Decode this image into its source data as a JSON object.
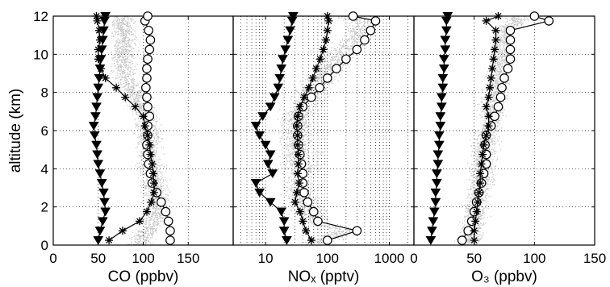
{
  "chart_data": [
    {
      "type": "line",
      "panel": "co",
      "xlabel": "CO (ppbv)",
      "ylabel": "altitude (km)",
      "xlim": [
        0,
        200
      ],
      "ylim": [
        0,
        12
      ],
      "xscale": "linear",
      "xticks": [
        0,
        50,
        100,
        150
      ],
      "yticks": [
        0,
        2,
        4,
        6,
        8,
        10,
        12
      ],
      "background_scatter": true,
      "series": [
        {
          "marker": "circle",
          "x": [
            130,
            130,
            128,
            125,
            120,
            115,
            110,
            108,
            106,
            105,
            104,
            105,
            105,
            107,
            105,
            104,
            103,
            104,
            104,
            105,
            107,
            108,
            106,
            102,
            105
          ],
          "y": [
            0.25,
            0.75,
            1.25,
            1.75,
            2.25,
            2.75,
            3.25,
            3.75,
            4.25,
            4.75,
            5.25,
            5.75,
            6.25,
            6.75,
            7.25,
            7.75,
            8.25,
            8.75,
            9.25,
            9.75,
            10.25,
            10.75,
            11.25,
            11.75,
            12
          ]
        },
        {
          "marker": "star",
          "x": [
            62,
            77,
            96,
            104,
            109,
            112,
            112,
            111,
            110,
            108,
            107,
            105,
            102,
            100,
            91,
            80,
            70,
            58,
            53,
            50,
            50,
            52,
            51,
            49,
            48
          ],
          "y": [
            0.25,
            0.75,
            1.25,
            1.75,
            2.25,
            2.75,
            3.25,
            3.75,
            4.25,
            4.75,
            5.25,
            5.75,
            6.25,
            6.75,
            7.25,
            7.75,
            8.25,
            8.75,
            9.25,
            9.75,
            10.25,
            10.75,
            11.25,
            11.75,
            12
          ]
        },
        {
          "marker": "triangle",
          "x": [
            50,
            52,
            55,
            58,
            57,
            56,
            54,
            52,
            50,
            49,
            48,
            46,
            45,
            47,
            48,
            49,
            50,
            51,
            52,
            53,
            54,
            55,
            56,
            57,
            58
          ],
          "y": [
            0.25,
            0.75,
            1.25,
            1.75,
            2.25,
            2.75,
            3.25,
            3.75,
            4.25,
            4.75,
            5.25,
            5.75,
            6.25,
            6.75,
            7.25,
            7.75,
            8.25,
            8.75,
            9.25,
            9.75,
            10.25,
            10.75,
            11.25,
            11.75,
            12
          ]
        }
      ]
    },
    {
      "type": "line",
      "panel": "nox",
      "xlabel": "NOₓ (pptv)",
      "xlim": [
        3,
        2500
      ],
      "ylim": [
        0,
        12
      ],
      "xscale": "log",
      "xticks": [
        10,
        100,
        1000
      ],
      "yticks": [
        0,
        2,
        4,
        6,
        8,
        10,
        12
      ],
      "background_scatter": true,
      "series": [
        {
          "marker": "circle",
          "x": [
            100,
            300,
            70,
            60,
            48,
            42,
            40,
            40,
            38,
            36,
            34,
            33,
            33,
            34,
            40,
            55,
            75,
            100,
            140,
            200,
            300,
            400,
            500,
            600,
            260
          ],
          "y": [
            0.25,
            0.75,
            1.25,
            1.75,
            2.25,
            2.75,
            3.25,
            3.75,
            4.25,
            4.75,
            5.25,
            5.75,
            6.25,
            6.75,
            7.25,
            7.75,
            8.25,
            8.75,
            9.25,
            9.75,
            10.25,
            10.75,
            11.25,
            11.75,
            12
          ]
        },
        {
          "marker": "star",
          "x": [
            55,
            45,
            40,
            36,
            30,
            32,
            35,
            33,
            34,
            34,
            33,
            33,
            32,
            33,
            36,
            42,
            50,
            58,
            66,
            76,
            86,
            95,
            100,
            105,
            100
          ],
          "y": [
            0.25,
            0.75,
            1.25,
            1.75,
            2.25,
            2.75,
            3.25,
            3.75,
            4.25,
            4.75,
            5.25,
            5.75,
            6.25,
            6.75,
            7.25,
            7.75,
            8.25,
            8.75,
            9.25,
            9.75,
            10.25,
            10.75,
            11.25,
            11.75,
            12
          ]
        },
        {
          "marker": "triangle",
          "x": [
            22,
            20,
            20,
            18,
            12,
            8,
            7,
            13,
            11,
            12,
            10,
            8,
            7,
            9,
            12,
            14,
            16,
            17,
            18,
            19,
            21,
            23,
            25,
            27,
            28
          ],
          "y": [
            0.25,
            0.75,
            1.25,
            1.75,
            2.25,
            2.75,
            3.25,
            3.75,
            4.25,
            4.75,
            5.25,
            5.75,
            6.25,
            6.75,
            7.25,
            7.75,
            8.25,
            8.75,
            9.25,
            9.75,
            10.25,
            10.75,
            11.25,
            11.75,
            12
          ]
        }
      ]
    },
    {
      "type": "line",
      "panel": "o3",
      "xlabel": "O₃ (ppbv)",
      "xlim": [
        0,
        150
      ],
      "ylim": [
        0,
        12
      ],
      "xscale": "linear",
      "xticks": [
        0,
        50,
        100,
        150
      ],
      "yticks": [
        0,
        2,
        4,
        6,
        8,
        10,
        12
      ],
      "background_scatter": true,
      "series": [
        {
          "marker": "circle",
          "x": [
            40,
            45,
            48,
            50,
            52,
            54,
            56,
            58,
            60,
            60,
            59,
            60,
            64,
            67,
            70,
            72,
            73,
            75,
            78,
            80,
            80,
            80,
            80,
            112,
            100
          ],
          "y": [
            0.25,
            0.75,
            1.25,
            1.75,
            2.25,
            2.75,
            3.25,
            3.75,
            4.25,
            4.75,
            5.25,
            5.75,
            6.25,
            6.75,
            7.25,
            7.75,
            8.25,
            8.75,
            9.25,
            9.75,
            10.25,
            10.75,
            11.25,
            11.75,
            12
          ]
        },
        {
          "marker": "star",
          "x": [
            50,
            50,
            51,
            52,
            53,
            54,
            55,
            55,
            56,
            57,
            58,
            60,
            62,
            62,
            60,
            62,
            63,
            64,
            65,
            66,
            67,
            68,
            68,
            60,
            70
          ],
          "y": [
            0.25,
            0.75,
            1.25,
            1.75,
            2.25,
            2.75,
            3.25,
            3.75,
            4.25,
            4.75,
            5.25,
            5.75,
            6.25,
            6.75,
            7.25,
            7.75,
            8.25,
            8.75,
            9.25,
            9.75,
            10.25,
            10.75,
            11.25,
            11.75,
            12
          ]
        },
        {
          "marker": "triangle",
          "x": [
            14,
            15,
            16,
            17,
            18,
            18,
            19,
            19,
            20,
            20,
            21,
            21,
            22,
            22,
            23,
            23,
            24,
            24,
            25,
            25,
            26,
            26,
            27,
            27,
            28
          ],
          "y": [
            0.25,
            0.75,
            1.25,
            1.75,
            2.25,
            2.75,
            3.25,
            3.75,
            4.25,
            4.75,
            5.25,
            5.75,
            6.25,
            6.75,
            7.25,
            7.75,
            8.25,
            8.75,
            9.25,
            9.75,
            10.25,
            10.75,
            11.25,
            11.75,
            12
          ]
        }
      ]
    }
  ]
}
